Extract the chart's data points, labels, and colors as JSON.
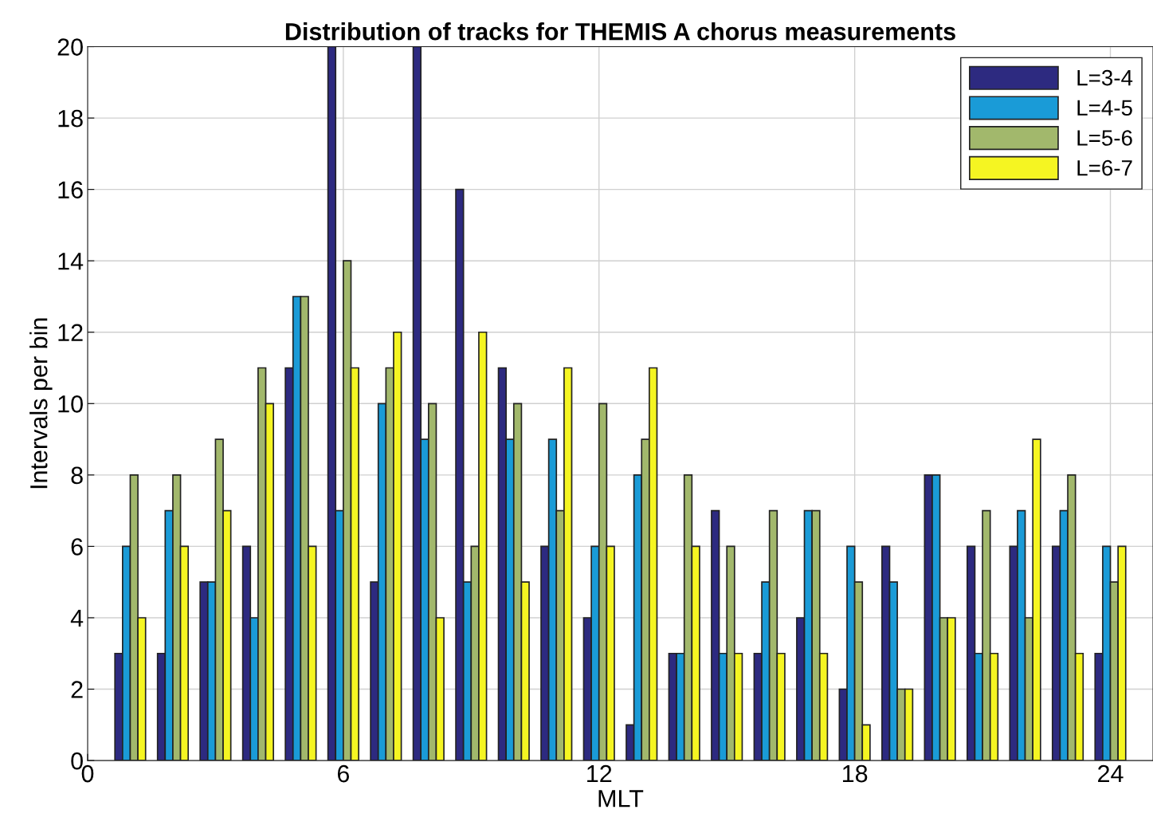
{
  "chart_data": {
    "type": "bar",
    "title": "Distribution of tracks for THEMIS A chorus measurements",
    "xlabel": "MLT",
    "ylabel": "Intervals per bin",
    "x": [
      1,
      2,
      3,
      4,
      5,
      6,
      7,
      8,
      9,
      10,
      11,
      12,
      13,
      14,
      15,
      16,
      17,
      18,
      19,
      20,
      21,
      22,
      23,
      24
    ],
    "series": [
      {
        "name": "L=3-4",
        "color": "#2d2a80",
        "values": [
          3,
          3,
          5,
          6,
          11,
          20,
          5,
          20,
          16,
          11,
          6,
          4,
          1,
          3,
          7,
          3,
          4,
          2,
          6,
          8,
          6,
          6,
          6,
          3
        ]
      },
      {
        "name": "L=4-5",
        "color": "#1a9bd7",
        "values": [
          6,
          7,
          5,
          4,
          13,
          7,
          10,
          9,
          5,
          9,
          9,
          6,
          8,
          3,
          3,
          5,
          7,
          6,
          5,
          8,
          3,
          7,
          7,
          6
        ]
      },
      {
        "name": "L=5-6",
        "color": "#a2b86c",
        "values": [
          8,
          8,
          9,
          11,
          13,
          14,
          11,
          10,
          6,
          10,
          7,
          10,
          9,
          8,
          6,
          7,
          7,
          5,
          2,
          4,
          7,
          4,
          8,
          5
        ]
      },
      {
        "name": "L=6-7",
        "color": "#f5f522",
        "values": [
          4,
          6,
          7,
          10,
          6,
          11,
          12,
          4,
          12,
          5,
          11,
          6,
          11,
          6,
          3,
          3,
          3,
          1,
          2,
          4,
          3,
          9,
          3,
          6
        ]
      }
    ],
    "xlim": [
      0,
      25
    ],
    "xticks": [
      0,
      6,
      12,
      18,
      24
    ],
    "ylim": [
      0,
      20
    ],
    "yticks": [
      0,
      2,
      4,
      6,
      8,
      10,
      12,
      14,
      16,
      18,
      20
    ],
    "grid": true,
    "legend": "top right"
  }
}
